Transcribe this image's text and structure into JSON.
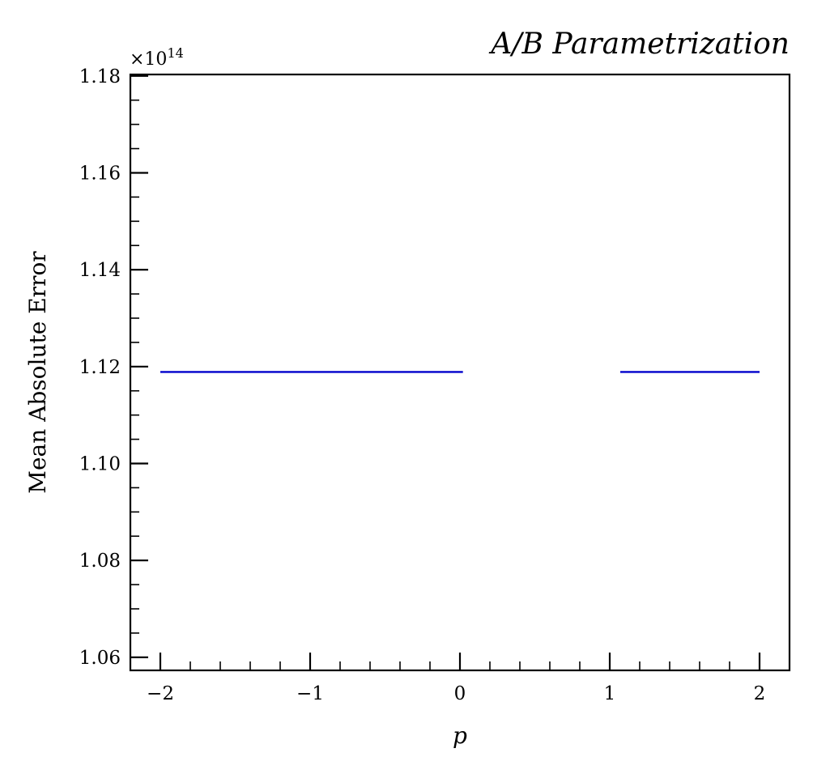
{
  "chart_data": {
    "type": "line",
    "title": "A/B Parametrization",
    "xlabel": "p",
    "ylabel": "Mean Absolute Error",
    "y_offset_text": "×10",
    "y_offset_exponent": "14",
    "xlim": [
      -2.2,
      2.2
    ],
    "ylim": [
      1.0573,
      1.1803
    ],
    "x_ticks": [
      -2,
      -1,
      0,
      1,
      2
    ],
    "x_tick_labels": [
      "−2",
      "−1",
      "0",
      "1",
      "2"
    ],
    "y_ticks": [
      1.06,
      1.08,
      1.1,
      1.12,
      1.14,
      1.16,
      1.18
    ],
    "y_tick_labels": [
      "1.06",
      "1.08",
      "1.10",
      "1.12",
      "1.14",
      "1.16",
      "1.18"
    ],
    "x_minor_step": 0.2,
    "y_minor_step": 0.005,
    "grid": false,
    "series": [
      {
        "color": "#0000cc",
        "segments": [
          {
            "x": [
              -2.0,
              0.02
            ],
            "y": [
              1.1189,
              1.1189
            ]
          },
          {
            "x": [
              1.07,
              2.0
            ],
            "y": [
              1.1189,
              1.1189
            ]
          }
        ]
      }
    ]
  }
}
